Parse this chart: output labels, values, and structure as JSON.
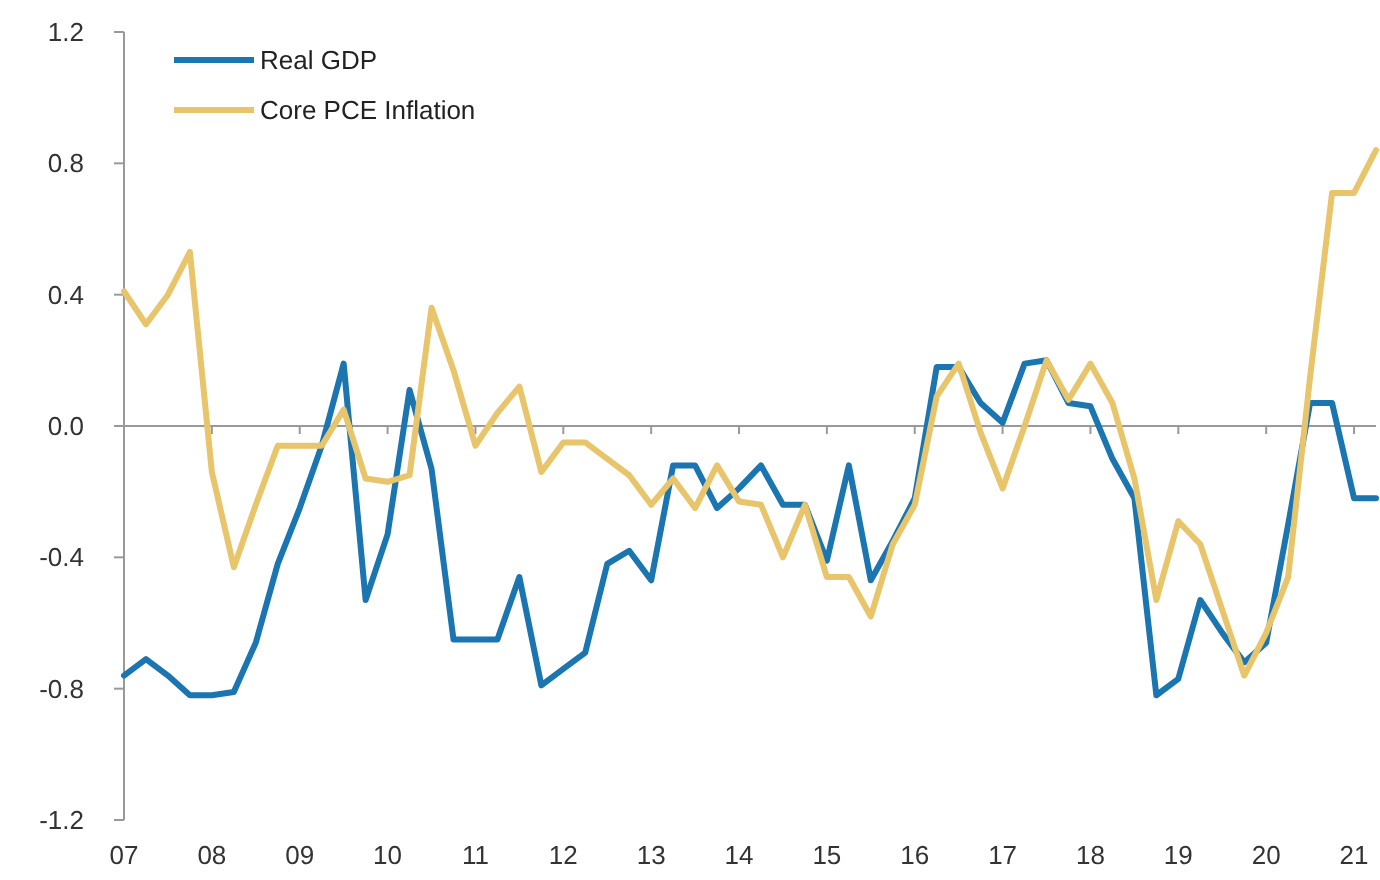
{
  "chart_data": {
    "type": "line",
    "x": [
      2007,
      2007.25,
      2007.5,
      2007.75,
      2008,
      2008.25,
      2008.5,
      2008.75,
      2009,
      2009.25,
      2009.5,
      2009.75,
      2010,
      2010.25,
      2010.5,
      2010.75,
      2011,
      2011.25,
      2011.5,
      2011.75,
      2012,
      2012.25,
      2012.5,
      2012.75,
      2013,
      2013.25,
      2013.5,
      2013.75,
      2014,
      2014.25,
      2014.5,
      2014.75,
      2015,
      2015.25,
      2015.5,
      2015.75,
      2016,
      2016.25,
      2016.5,
      2016.75,
      2017,
      2017.25,
      2017.5,
      2017.75,
      2018,
      2018.25,
      2018.5,
      2018.75,
      2019,
      2019.25,
      2019.5,
      2019.75,
      2020,
      2020.25,
      2020.5,
      2020.75,
      2021,
      2021.25
    ],
    "series": [
      {
        "name": "Real GDP",
        "color": "#1a75b0",
        "values": [
          -0.76,
          -0.71,
          -0.76,
          -0.82,
          -0.82,
          -0.81,
          -0.66,
          -0.42,
          -0.25,
          -0.06,
          0.19,
          -0.53,
          -0.33,
          0.11,
          -0.13,
          -0.65,
          -0.65,
          -0.65,
          -0.46,
          -0.79,
          -0.74,
          -0.69,
          -0.42,
          -0.38,
          -0.47,
          -0.12,
          -0.12,
          -0.25,
          -0.19,
          -0.12,
          -0.24,
          -0.24,
          -0.41,
          -0.12,
          -0.47,
          -0.35,
          -0.22,
          0.18,
          0.18,
          0.07,
          0.01,
          0.19,
          0.2,
          0.07,
          0.06,
          -0.1,
          -0.22,
          -0.82,
          -0.77,
          -0.53,
          -0.63,
          -0.72,
          -0.66,
          -0.3,
          0.07,
          0.07,
          -0.22,
          -0.22
        ]
      },
      {
        "name": "Core PCE Inflation",
        "color": "#e8c46a",
        "values": [
          0.41,
          0.31,
          0.4,
          0.53,
          -0.14,
          -0.43,
          -0.24,
          -0.06,
          -0.06,
          -0.06,
          0.05,
          -0.16,
          -0.17,
          -0.15,
          0.36,
          0.17,
          -0.06,
          0.04,
          0.12,
          -0.14,
          -0.05,
          -0.05,
          -0.1,
          -0.15,
          -0.24,
          -0.16,
          -0.25,
          -0.12,
          -0.23,
          -0.24,
          -0.4,
          -0.24,
          -0.46,
          -0.46,
          -0.58,
          -0.36,
          -0.24,
          0.09,
          0.19,
          -0.02,
          -0.19,
          0,
          0.2,
          0.08,
          0.19,
          0.07,
          -0.16,
          -0.53,
          -0.29,
          -0.36,
          -0.56,
          -0.76,
          -0.63,
          -0.46,
          0.15,
          0.71,
          0.71,
          0.84
        ]
      }
    ],
    "xlim": [
      2007,
      2021.25
    ],
    "xticks": [
      {
        "value": 2007,
        "label": "07"
      },
      {
        "value": 2008,
        "label": "08"
      },
      {
        "value": 2009,
        "label": "09"
      },
      {
        "value": 2010,
        "label": "10"
      },
      {
        "value": 2011,
        "label": "11"
      },
      {
        "value": 2012,
        "label": "12"
      },
      {
        "value": 2013,
        "label": "13"
      },
      {
        "value": 2014,
        "label": "14"
      },
      {
        "value": 2015,
        "label": "15"
      },
      {
        "value": 2016,
        "label": "16"
      },
      {
        "value": 2017,
        "label": "17"
      },
      {
        "value": 2018,
        "label": "18"
      },
      {
        "value": 2019,
        "label": "19"
      },
      {
        "value": 2020,
        "label": "20"
      },
      {
        "value": 2021,
        "label": "21"
      }
    ],
    "ylim": [
      -1.2,
      1.2
    ],
    "yticks": [
      -1.2,
      -0.8,
      -0.4,
      {
        "value": 0,
        "label": "0.0"
      },
      0.4,
      0.8,
      1.2
    ],
    "ref_lines": [
      {
        "axis": "y",
        "value": 0,
        "color": "#999999"
      }
    ],
    "legend": "top left",
    "grid": false,
    "marker": "none",
    "line_style": "solid"
  }
}
